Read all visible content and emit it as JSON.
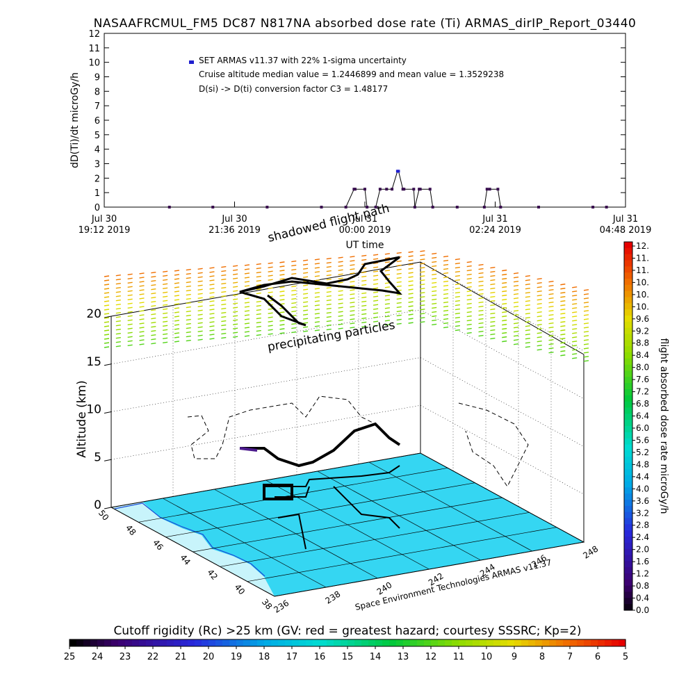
{
  "title": "NASAAFRCMUL_FM5 DC87 N817NA absorbed dose rate (Ti) ARMAS_dirIP_Report_03440",
  "chart_data": [
    {
      "type": "line",
      "title": "NASAAFRCMUL_FM5 DC87 N817NA absorbed dose rate (Ti) ARMAS_dirIP_Report_03440",
      "ylabel": "dD(Ti)/dt microGy/h",
      "xlabel": "UT time",
      "ylim": [
        0,
        12
      ],
      "y_ticks": [
        "0",
        "1",
        "2",
        "3",
        "4",
        "5",
        "6",
        "7",
        "8",
        "9",
        "10",
        "11",
        "12"
      ],
      "x_ticks": [
        {
          "day": "Jul 30",
          "time": "19:12 2019"
        },
        {
          "day": "Jul 30",
          "time": "21:36 2019"
        },
        {
          "day": "Jul 31",
          "time": "00:00 2019"
        },
        {
          "day": "Jul 31",
          "time": "02:24 2019"
        },
        {
          "day": "Jul 31",
          "time": "04:48 2019"
        }
      ],
      "x_hours_range": [
        0,
        9.6
      ],
      "legend": {
        "marker_color": "#1f1fcf",
        "line1": "SET ARMAS v11.37 with 22% 1-sigma uncertainty",
        "line2": "Cruise altitude median value = 1.2446899 and mean value = 1.3529238",
        "line3": "D(si) -> D(ti) conversion factor C3 = 1.48177"
      },
      "x_hours": [
        1.2,
        2.0,
        3.0,
        4.0,
        4.45,
        4.6,
        4.62,
        4.8,
        4.84,
        5.0,
        5.08,
        5.2,
        5.3,
        5.4,
        5.42,
        5.5,
        5.52,
        5.7,
        5.72,
        5.8,
        5.82,
        6.0,
        6.05,
        6.5,
        7.0,
        7.05,
        7.1,
        7.25,
        7.3,
        8.0,
        9.0,
        9.25
      ],
      "values": [
        0,
        0,
        0,
        0,
        0,
        1.24,
        1.24,
        1.24,
        0,
        0,
        1.24,
        1.24,
        1.24,
        2.48,
        2.48,
        1.24,
        1.24,
        1.24,
        0,
        1.24,
        1.24,
        1.24,
        0,
        0,
        0,
        1.24,
        1.24,
        1.24,
        0,
        0,
        0,
        0
      ]
    },
    {
      "type": "scatter",
      "title": "",
      "zlabel": "Altitude (km)",
      "z_ticks": [
        "0",
        "5",
        "10",
        "15",
        "20"
      ],
      "lat_ticks": [
        "50",
        "48",
        "46",
        "44",
        "42",
        "40",
        "38"
      ],
      "lon_ticks": [
        "236",
        "238",
        "240",
        "242",
        "244",
        "246",
        "248"
      ],
      "annotations": {
        "shadowed": "shadowed flight path",
        "precipitating": "precipitating particles",
        "credit": "Space Environment Technologies ARMAS v11.37"
      }
    },
    {
      "type": "heatmap",
      "title": "flight absorbed dose rate microGy/h",
      "colorbar_ticks": [
        "12.",
        "11.",
        "11.",
        "10.",
        "10.",
        "10.",
        "9.6",
        "9.2",
        "8.8",
        "8.4",
        "8.0",
        "7.6",
        "7.2",
        "6.8",
        "6.4",
        "6.0",
        "5.6",
        "5.2",
        "4.8",
        "4.4",
        "4.0",
        "3.6",
        "3.2",
        "2.8",
        "2.4",
        "2.0",
        "1.6",
        "1.2",
        "0.8",
        "0.4",
        "0.0"
      ]
    },
    {
      "type": "heatmap",
      "title": "Cutoff rigidity (Rc) >25 km (GV: red = greatest hazard; courtesy SSSRC; Kp=2)",
      "colorbar_ticks": [
        "25",
        "24",
        "23",
        "22",
        "21",
        "20",
        "19",
        "18",
        "17",
        "16",
        "15",
        "14",
        "13",
        "12",
        "11",
        "10",
        "9",
        "8",
        "7",
        "6",
        "5"
      ]
    }
  ]
}
